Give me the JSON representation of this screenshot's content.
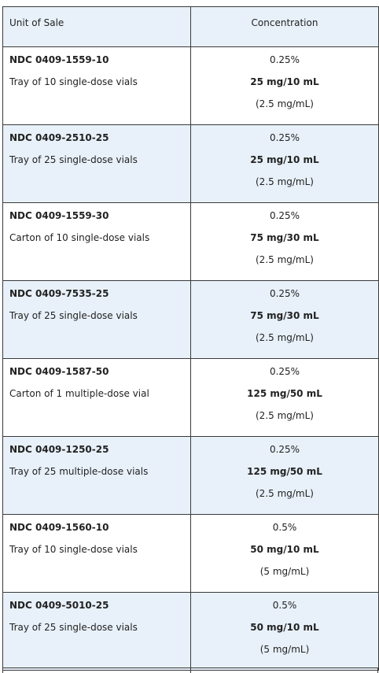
{
  "table": {
    "headers": {
      "unit": "Unit of Sale",
      "concentration": "Concentration"
    },
    "rows": [
      {
        "ndc": "NDC 0409-1559-10",
        "pack": "Tray of 10 single-dose vials",
        "percent": "0.25%",
        "amount": "25 mg/10 mL",
        "per_ml": "(2.5 mg/mL)"
      },
      {
        "ndc": "NDC 0409-2510-25",
        "pack": "Tray of 25 single-dose vials",
        "percent": "0.25%",
        "amount": "25 mg/10 mL",
        "per_ml": "(2.5 mg/mL)"
      },
      {
        "ndc": "NDC 0409-1559-30",
        "pack": "Carton of 10 single-dose vials",
        "percent": "0.25%",
        "amount": "75 mg/30 mL",
        "per_ml": "(2.5 mg/mL)"
      },
      {
        "ndc": "NDC 0409-7535-25",
        "pack": "Tray of 25 single-dose vials",
        "percent": "0.25%",
        "amount": "75 mg/30 mL",
        "per_ml": "(2.5 mg/mL)"
      },
      {
        "ndc": "NDC 0409-1587-50",
        "pack": "Carton of 1 multiple-dose vial",
        "percent": "0.25%",
        "amount": "125 mg/50 mL",
        "per_ml": "(2.5 mg/mL)"
      },
      {
        "ndc": "NDC 0409-1250-25",
        "pack": "Tray of 25 multiple-dose vials",
        "percent": "0.25%",
        "amount": "125 mg/50 mL",
        "per_ml": "(2.5 mg/mL)"
      },
      {
        "ndc": "NDC 0409-1560-10",
        "pack": "Tray of 10 single-dose vials",
        "percent": "0.5%",
        "amount": "50 mg/10 mL",
        "per_ml": "(5 mg/mL)"
      },
      {
        "ndc": "NDC 0409-5010-25",
        "pack": "Tray of 25 single-dose vials",
        "percent": "0.5%",
        "amount": "50 mg/10 mL",
        "per_ml": "(5 mg/mL)"
      }
    ]
  },
  "colors": {
    "stripe": "#e8f1fa",
    "border": "#3a3a3a",
    "text": "#222222"
  }
}
